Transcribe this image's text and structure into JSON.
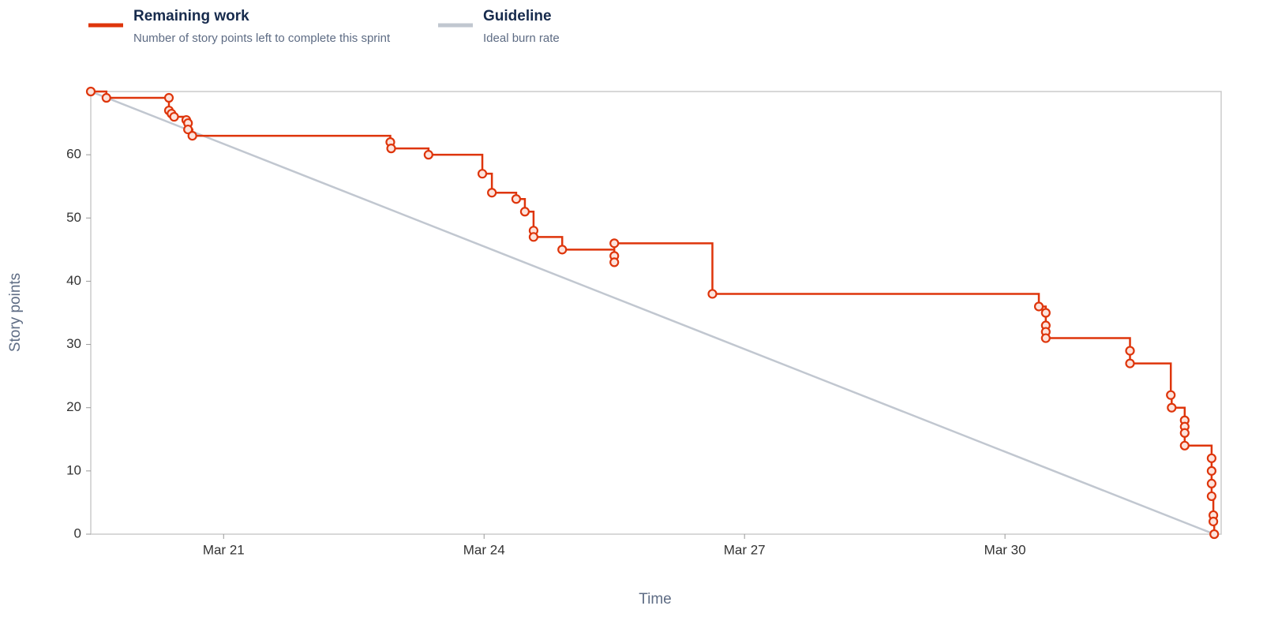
{
  "chart_data": {
    "type": "line",
    "y_label": "Story points",
    "x_label": "Time",
    "xlim": [
      19.47,
      32.49
    ],
    "ylim": [
      0,
      70
    ],
    "xticks": [
      {
        "value": 21,
        "label": "Mar 21"
      },
      {
        "value": 24,
        "label": "Mar 24"
      },
      {
        "value": 27,
        "label": "Mar 27"
      },
      {
        "value": 30,
        "label": "Mar 30"
      }
    ],
    "yticks": [
      0,
      10,
      20,
      30,
      40,
      50,
      60
    ],
    "series": [
      {
        "name": "Remaining work",
        "description": "Number of story points left to complete this sprint",
        "color": "#de350b",
        "step": true,
        "markers": true,
        "x": [
          19.47,
          19.65,
          20.37,
          20.37,
          20.4,
          20.43,
          20.57,
          20.59,
          20.59,
          20.64,
          22.92,
          22.93,
          23.36,
          23.98,
          24.09,
          24.37,
          24.47,
          24.57,
          24.57,
          24.9,
          25.5,
          25.5,
          25.5,
          26.63,
          30.39,
          30.47,
          30.47,
          30.47,
          30.47,
          31.44,
          31.44,
          31.91,
          31.92,
          32.07,
          32.07,
          32.07,
          32.07,
          32.38,
          32.38,
          32.38,
          32.38,
          32.4,
          32.4,
          32.41
        ],
        "values": [
          70,
          69,
          69,
          67,
          66.5,
          66,
          65.5,
          65,
          64,
          63,
          62,
          61,
          60,
          57,
          54,
          53,
          51,
          48,
          47,
          45,
          44,
          43,
          46,
          38,
          36,
          35,
          33,
          32,
          31,
          29,
          27,
          22,
          20,
          18,
          17,
          16,
          14,
          12,
          10,
          8,
          6,
          3,
          2,
          0
        ]
      },
      {
        "name": "Guideline",
        "description": "Ideal burn rate",
        "color": "#c1c7d0",
        "step": false,
        "markers": false,
        "x": [
          19.47,
          32.41
        ],
        "values": [
          70,
          0
        ]
      }
    ]
  }
}
